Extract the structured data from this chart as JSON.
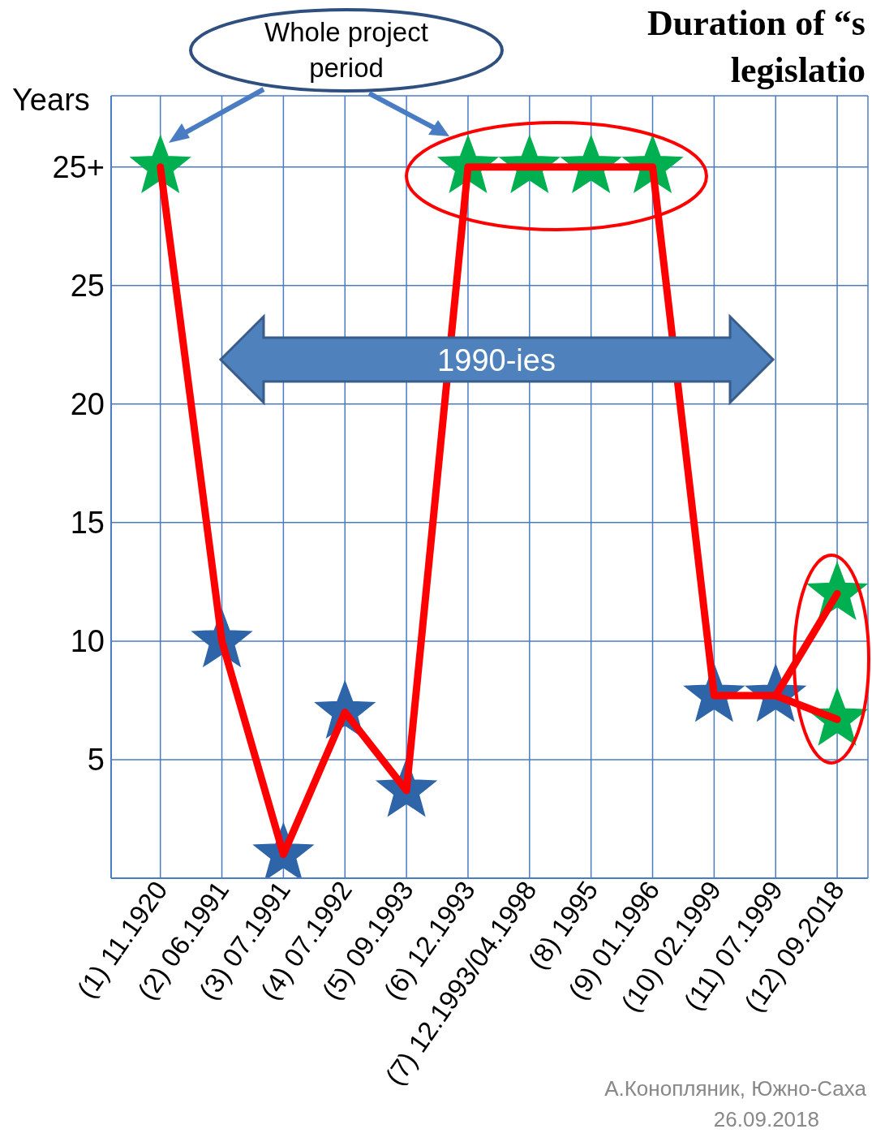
{
  "chart_data": {
    "type": "line",
    "title": "Duration of “s",
    "subtitle": "legislatio",
    "ylabel": "Years",
    "categories": [
      "(1) 11.1920",
      "(2) 06.1991",
      "(3) 07.1991",
      "(4) 07.1992",
      "(5) 09.1993",
      "(6) 12.1993",
      "(7) 12.1993/04.1998",
      "(8) 1995",
      "(9) 01.1996",
      "(10) 02.1999",
      "(11) 07.1999",
      "(12) 09.2018"
    ],
    "series": [
      {
        "color": "#ff0000",
        "values": [
          30,
          10,
          1,
          7,
          3.7,
          30,
          30,
          30,
          30,
          7.7,
          7.7,
          12
        ],
        "marker": "none",
        "line_style": "solid"
      },
      {
        "color": "#ff0000",
        "values": [
          null,
          null,
          null,
          null,
          null,
          null,
          null,
          null,
          null,
          null,
          7.7,
          6.7
        ],
        "marker": "none",
        "line_style": "solid"
      },
      {
        "type": "scatter",
        "color": "#00b050",
        "x": [
          "(1) 11.1920",
          "(6) 12.1993",
          "(7) 12.1993/04.1998",
          "(8) 1995",
          "(9) 01.1996",
          "(12) 09.2018",
          "(12) 09.2018"
        ],
        "values": [
          30,
          30,
          30,
          30,
          30,
          12,
          6.7
        ],
        "marker": "star"
      },
      {
        "type": "scatter",
        "color": "#2e64a8",
        "x": [
          "(2) 06.1991",
          "(3) 07.1991",
          "(4) 07.1992",
          "(5) 09.1993",
          "(10) 02.1999",
          "(11) 07.1999"
        ],
        "values": [
          10,
          1,
          7,
          3.7,
          7.7,
          7.7
        ],
        "marker": "star"
      }
    ],
    "ylim": [
      0,
      33
    ],
    "yticks": [
      5,
      10,
      15,
      20,
      25,
      {
        "value": 30,
        "label": "25+"
      }
    ],
    "grid": true,
    "annotations": [
      "Whole project period",
      "1990-ies",
      "А.Конопляник, Южно-Саха",
      "26.09.2018"
    ]
  }
}
